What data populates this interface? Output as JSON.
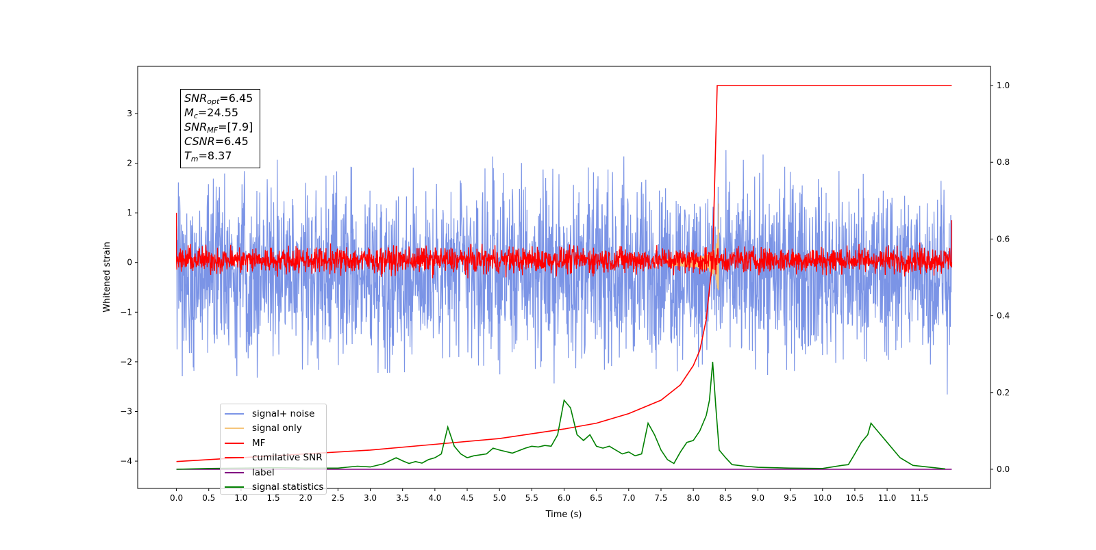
{
  "chart_data": {
    "type": "line",
    "xlabel": "Time (s)",
    "ylabel": "Whitened strain",
    "xlim": [
      -0.6,
      12.6
    ],
    "ylim_left": [
      -4.55,
      3.95
    ],
    "ylim_right": [
      -0.05,
      1.05
    ],
    "x_ticks": [
      "0.0",
      "0.5",
      "1.0",
      "1.5",
      "2.0",
      "2.5",
      "3.0",
      "3.5",
      "4.0",
      "4.5",
      "5.0",
      "5.5",
      "6.0",
      "6.5",
      "7.0",
      "7.5",
      "8.0",
      "8.5",
      "9.0",
      "9.5",
      "10.0",
      "10.5",
      "11.0",
      "11.5"
    ],
    "y_ticks_left": [
      "3",
      "2",
      "1",
      "0",
      "−1",
      "−2",
      "−3",
      "−4"
    ],
    "y_ticks_right": [
      "1.0",
      "0.8",
      "0.6",
      "0.4",
      "0.2",
      "0.0"
    ],
    "info_box": [
      {
        "sym": "SNR",
        "sub": "opt",
        "value": "=6.45"
      },
      {
        "sym": "M",
        "sub": "c",
        "value": "=24.55"
      },
      {
        "sym": "SNR",
        "sub": "MF",
        "value": "=[7.9]"
      },
      {
        "sym": "CSNR",
        "sub": "",
        "value": "=6.45"
      },
      {
        "sym": "T",
        "sub": "m",
        "value": "=8.37"
      }
    ],
    "legend_position": "lower-left",
    "series": [
      {
        "name": "signal+ noise",
        "color": "#7b94e6",
        "axis": "left",
        "kind": "noise",
        "center": -0.15,
        "amplitude": 1.55,
        "x_start": 0.0,
        "x_end": 12.0
      },
      {
        "name": "signal only",
        "color": "#f5c57a",
        "axis": "left",
        "kind": "chirp",
        "merger_time": 8.37
      },
      {
        "name": "MF",
        "color": "#ff0000",
        "axis": "left",
        "kind": "noise",
        "center": 0.05,
        "amplitude": 0.2
      },
      {
        "name": "cumilative SNR",
        "color": "#ff0000",
        "axis": "right",
        "x": [
          0.0,
          1.0,
          2.0,
          3.0,
          4.0,
          5.0,
          6.0,
          6.5,
          7.0,
          7.5,
          7.8,
          8.0,
          8.1,
          8.2,
          8.3,
          8.37,
          8.4,
          9.0,
          10.0,
          11.0,
          12.0
        ],
        "y": [
          0.02,
          0.03,
          0.04,
          0.05,
          0.065,
          0.08,
          0.105,
          0.12,
          0.145,
          0.18,
          0.22,
          0.27,
          0.31,
          0.39,
          0.55,
          1.0,
          1.0,
          1.0,
          1.0,
          1.0,
          1.0
        ]
      },
      {
        "name": "label",
        "color": "#800080",
        "axis": "right",
        "x": [
          0.0,
          12.0
        ],
        "y": [
          0.0,
          0.0
        ]
      },
      {
        "name": "signal statistics",
        "color": "#008000",
        "axis": "right",
        "x": [
          0.0,
          0.5,
          1.0,
          1.5,
          2.0,
          2.5,
          2.8,
          3.0,
          3.2,
          3.4,
          3.5,
          3.6,
          3.7,
          3.8,
          3.9,
          4.0,
          4.1,
          4.2,
          4.3,
          4.4,
          4.5,
          4.6,
          4.8,
          4.9,
          5.0,
          5.2,
          5.4,
          5.5,
          5.6,
          5.7,
          5.8,
          5.9,
          6.0,
          6.1,
          6.2,
          6.3,
          6.4,
          6.5,
          6.6,
          6.7,
          6.8,
          6.9,
          7.0,
          7.1,
          7.2,
          7.3,
          7.4,
          7.5,
          7.6,
          7.7,
          7.8,
          7.9,
          8.0,
          8.1,
          8.2,
          8.25,
          8.3,
          8.35,
          8.4,
          8.5,
          8.6,
          8.8,
          9.0,
          9.5,
          10.0,
          10.3,
          10.4,
          10.5,
          10.6,
          10.7,
          10.75,
          10.8,
          10.9,
          11.0,
          11.1,
          11.2,
          11.4,
          11.9
        ],
        "y": [
          0.0,
          0.002,
          0.003,
          0.004,
          0.003,
          0.003,
          0.008,
          0.006,
          0.014,
          0.03,
          0.022,
          0.015,
          0.02,
          0.016,
          0.025,
          0.03,
          0.04,
          0.11,
          0.06,
          0.04,
          0.03,
          0.035,
          0.04,
          0.055,
          0.05,
          0.042,
          0.055,
          0.06,
          0.058,
          0.062,
          0.06,
          0.09,
          0.18,
          0.16,
          0.09,
          0.075,
          0.09,
          0.06,
          0.055,
          0.06,
          0.05,
          0.04,
          0.045,
          0.035,
          0.04,
          0.12,
          0.09,
          0.05,
          0.025,
          0.015,
          0.045,
          0.07,
          0.075,
          0.1,
          0.14,
          0.18,
          0.28,
          0.16,
          0.05,
          0.03,
          0.012,
          0.008,
          0.005,
          0.003,
          0.002,
          0.01,
          0.012,
          0.04,
          0.07,
          0.09,
          0.12,
          0.11,
          0.09,
          0.07,
          0.05,
          0.03,
          0.01,
          0.001
        ]
      }
    ]
  }
}
